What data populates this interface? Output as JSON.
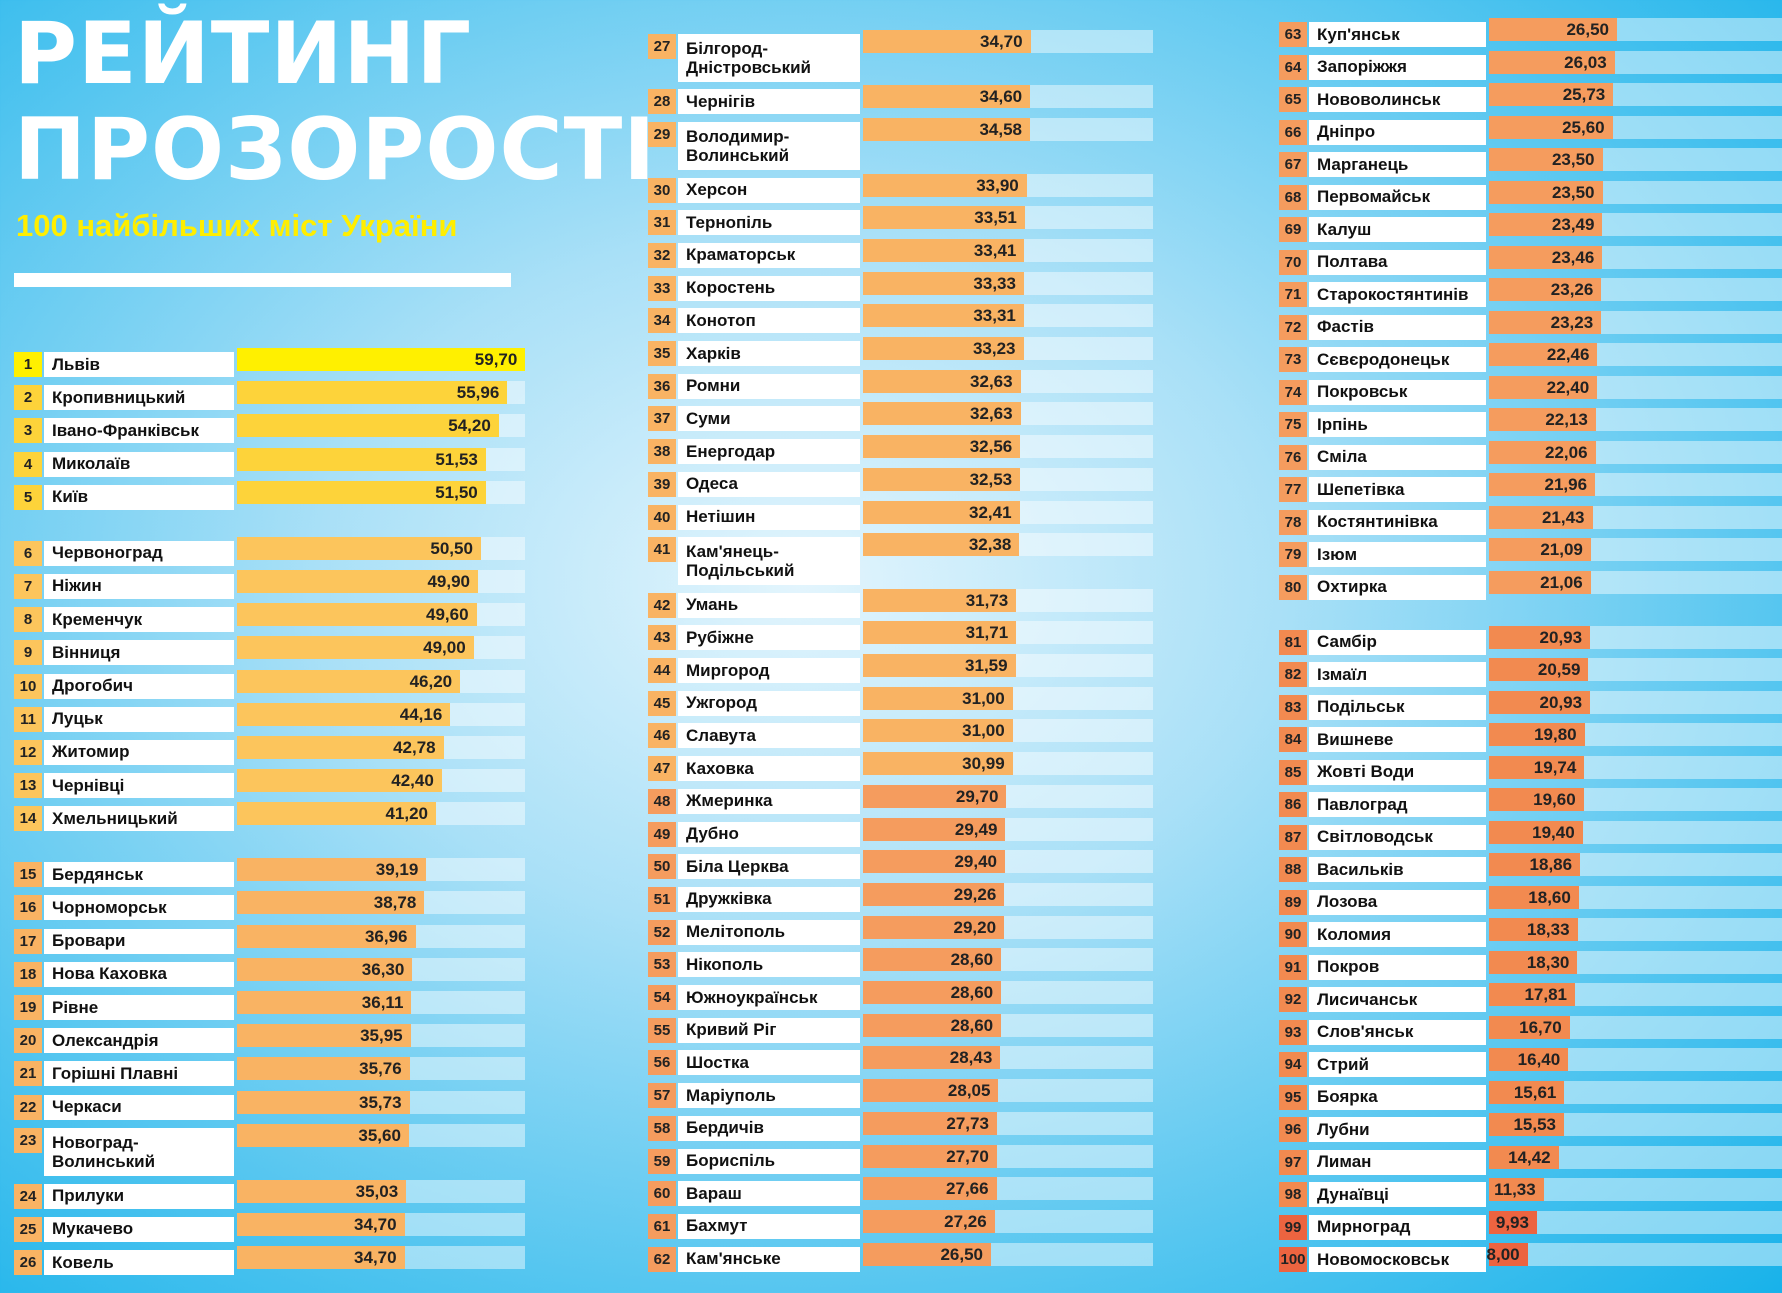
{
  "header": {
    "title_line1": "РЕЙТИНГ",
    "title_line2": "ПРОЗОРОСТІ",
    "subtitle": "100 найбільших міст України"
  },
  "colors": {
    "first": "#fff000",
    "top": "#fdd33a",
    "high": "#fcc55c",
    "mid": "#f9b363",
    "low": "#f59c5e",
    "lower": "#f28a50",
    "lowest": "#ec6440",
    "title": "#ffffff",
    "subtitle": "#ffee00"
  },
  "chart_data": {
    "type": "bar",
    "orientation": "horizontal",
    "title": "РЕЙТИНГ ПРОЗОРОСТІ",
    "subtitle": "100 найбільших міст України",
    "xlim": [
      0,
      60
    ],
    "grid": false,
    "rows": [
      {
        "rank": 1,
        "city": "Львів",
        "value": 59.7
      },
      {
        "rank": 2,
        "city": "Кропивницький",
        "value": 55.96
      },
      {
        "rank": 3,
        "city": "Івано-Франківськ",
        "value": 54.2
      },
      {
        "rank": 4,
        "city": "Миколаїв",
        "value": 51.53
      },
      {
        "rank": 5,
        "city": "Київ",
        "value": 51.5
      },
      {
        "rank": 6,
        "city": "Червоноград",
        "value": 50.5
      },
      {
        "rank": 7,
        "city": "Ніжин",
        "value": 49.9
      },
      {
        "rank": 8,
        "city": "Кременчук",
        "value": 49.6
      },
      {
        "rank": 9,
        "city": "Вінниця",
        "value": 49.0
      },
      {
        "rank": 10,
        "city": "Дрогобич",
        "value": 46.2
      },
      {
        "rank": 11,
        "city": "Луцьк",
        "value": 44.16
      },
      {
        "rank": 12,
        "city": "Житомир",
        "value": 42.78
      },
      {
        "rank": 13,
        "city": "Чернівці",
        "value": 42.4
      },
      {
        "rank": 14,
        "city": "Хмельницький",
        "value": 41.2
      },
      {
        "rank": 15,
        "city": "Бердянськ",
        "value": 39.19
      },
      {
        "rank": 16,
        "city": "Чорноморськ",
        "value": 38.78
      },
      {
        "rank": 17,
        "city": "Бровари",
        "value": 36.96
      },
      {
        "rank": 18,
        "city": "Нова Каховка",
        "value": 36.3
      },
      {
        "rank": 19,
        "city": "Рівне",
        "value": 36.11
      },
      {
        "rank": 20,
        "city": "Олександрія",
        "value": 35.95
      },
      {
        "rank": 21,
        "city": "Горішні Плавні",
        "value": 35.76
      },
      {
        "rank": 22,
        "city": "Черкаси",
        "value": 35.73
      },
      {
        "rank": 23,
        "city": "Новоград-Волинський",
        "value": 35.6
      },
      {
        "rank": 24,
        "city": "Прилуки",
        "value": 35.03
      },
      {
        "rank": 25,
        "city": "Мукачево",
        "value": 34.7
      },
      {
        "rank": 26,
        "city": "Ковель",
        "value": 34.7
      },
      {
        "rank": 27,
        "city": "Білгород-Дністровський",
        "value": 34.7
      },
      {
        "rank": 28,
        "city": "Чернігів",
        "value": 34.6
      },
      {
        "rank": 29,
        "city": "Володимир-Волинський",
        "value": 34.58
      },
      {
        "rank": 30,
        "city": "Херсон",
        "value": 33.9
      },
      {
        "rank": 31,
        "city": "Тернопіль",
        "value": 33.51
      },
      {
        "rank": 32,
        "city": "Краматорськ",
        "value": 33.41
      },
      {
        "rank": 33,
        "city": "Коростень",
        "value": 33.33
      },
      {
        "rank": 34,
        "city": "Конотоп",
        "value": 33.31
      },
      {
        "rank": 35,
        "city": "Харків",
        "value": 33.23
      },
      {
        "rank": 36,
        "city": "Ромни",
        "value": 32.63
      },
      {
        "rank": 37,
        "city": "Суми",
        "value": 32.63
      },
      {
        "rank": 38,
        "city": "Енергодар",
        "value": 32.56
      },
      {
        "rank": 39,
        "city": "Одеса",
        "value": 32.53
      },
      {
        "rank": 40,
        "city": "Нетішин",
        "value": 32.41
      },
      {
        "rank": 41,
        "city": "Кам'янець-Подільський",
        "value": 32.38
      },
      {
        "rank": 42,
        "city": "Умань",
        "value": 31.73
      },
      {
        "rank": 43,
        "city": "Рубіжне",
        "value": 31.71
      },
      {
        "rank": 44,
        "city": "Миргород",
        "value": 31.59
      },
      {
        "rank": 45,
        "city": "Ужгород",
        "value": 31.0
      },
      {
        "rank": 46,
        "city": "Славута",
        "value": 31.0
      },
      {
        "rank": 47,
        "city": "Каховка",
        "value": 30.99
      },
      {
        "rank": 48,
        "city": "Жмеринка",
        "value": 29.7
      },
      {
        "rank": 49,
        "city": "Дубно",
        "value": 29.49
      },
      {
        "rank": 50,
        "city": "Біла Церква",
        "value": 29.4
      },
      {
        "rank": 51,
        "city": "Дружківка",
        "value": 29.26
      },
      {
        "rank": 52,
        "city": "Мелітополь",
        "value": 29.2
      },
      {
        "rank": 53,
        "city": "Нікополь",
        "value": 28.6
      },
      {
        "rank": 54,
        "city": "Южноукраїнськ",
        "value": 28.6
      },
      {
        "rank": 55,
        "city": "Кривий Ріг",
        "value": 28.6
      },
      {
        "rank": 56,
        "city": "Шостка",
        "value": 28.43
      },
      {
        "rank": 57,
        "city": "Маріуполь",
        "value": 28.05
      },
      {
        "rank": 58,
        "city": "Бердичів",
        "value": 27.73
      },
      {
        "rank": 59,
        "city": "Бориспіль",
        "value": 27.7
      },
      {
        "rank": 60,
        "city": "Вараш",
        "value": 27.66
      },
      {
        "rank": 61,
        "city": "Бахмут",
        "value": 27.26
      },
      {
        "rank": 62,
        "city": "Кам'янське",
        "value": 26.5
      },
      {
        "rank": 63,
        "city": "Куп'янськ",
        "value": 26.5
      },
      {
        "rank": 64,
        "city": "Запоріжжя",
        "value": 26.03
      },
      {
        "rank": 65,
        "city": "Нововолинськ",
        "value": 25.73
      },
      {
        "rank": 66,
        "city": "Дніпро",
        "value": 25.6
      },
      {
        "rank": 67,
        "city": "Марганець",
        "value": 23.5
      },
      {
        "rank": 68,
        "city": "Первомайськ",
        "value": 23.5
      },
      {
        "rank": 69,
        "city": "Калуш",
        "value": 23.49
      },
      {
        "rank": 70,
        "city": "Полтава",
        "value": 23.46
      },
      {
        "rank": 71,
        "city": "Старокостянтинів",
        "value": 23.26
      },
      {
        "rank": 72,
        "city": "Фастів",
        "value": 23.23
      },
      {
        "rank": 73,
        "city": "Сєвєродонецьк",
        "value": 22.46
      },
      {
        "rank": 74,
        "city": "Покровськ",
        "value": 22.4
      },
      {
        "rank": 75,
        "city": "Ірпінь",
        "value": 22.13
      },
      {
        "rank": 76,
        "city": "Сміла",
        "value": 22.06
      },
      {
        "rank": 77,
        "city": "Шепетівка",
        "value": 21.96
      },
      {
        "rank": 78,
        "city": "Костянтинівка",
        "value": 21.43
      },
      {
        "rank": 79,
        "city": "Ізюм",
        "value": 21.09
      },
      {
        "rank": 80,
        "city": "Охтирка",
        "value": 21.06
      },
      {
        "rank": 81,
        "city": "Самбір",
        "value": 20.93
      },
      {
        "rank": 82,
        "city": "Ізмаїл",
        "value": 20.59
      },
      {
        "rank": 83,
        "city": "Подільськ",
        "value": 20.93
      },
      {
        "rank": 84,
        "city": "Вишневе",
        "value": 19.8
      },
      {
        "rank": 85,
        "city": "Жовті Води",
        "value": 19.74
      },
      {
        "rank": 86,
        "city": "Павлоград",
        "value": 19.6
      },
      {
        "rank": 87,
        "city": "Світловодськ",
        "value": 19.4
      },
      {
        "rank": 88,
        "city": "Васильків",
        "value": 18.86
      },
      {
        "rank": 89,
        "city": "Лозова",
        "value": 18.6
      },
      {
        "rank": 90,
        "city": "Коломия",
        "value": 18.33
      },
      {
        "rank": 91,
        "city": "Покров",
        "value": 18.3
      },
      {
        "rank": 92,
        "city": "Лисичанськ",
        "value": 17.81
      },
      {
        "rank": 93,
        "city": "Слов'янськ",
        "value": 16.7
      },
      {
        "rank": 94,
        "city": "Стрий",
        "value": 16.4
      },
      {
        "rank": 95,
        "city": "Боярка",
        "value": 15.61
      },
      {
        "rank": 96,
        "city": "Лубни",
        "value": 15.53
      },
      {
        "rank": 97,
        "city": "Лиман",
        "value": 14.42
      },
      {
        "rank": 98,
        "city": "Дунаївці",
        "value": 11.33
      },
      {
        "rank": 99,
        "city": "Мирноград",
        "value": 9.93
      },
      {
        "rank": 100,
        "city": "Новомосковськ",
        "value": 8.0
      }
    ]
  }
}
